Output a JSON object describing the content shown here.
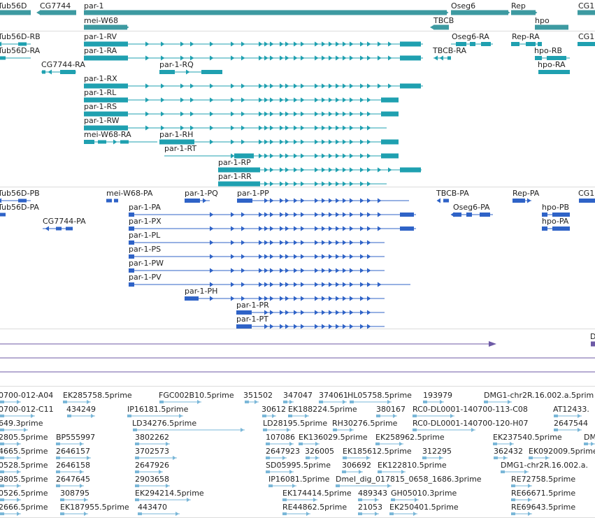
{
  "colors": {
    "gene": "#3d9aa1",
    "transcript": "#1fa0b0",
    "protein": "#2f63c7",
    "est": "#7ab7d8",
    "purple": "#6d5aa6",
    "divider": "#dcdcdc"
  },
  "genes_track": {
    "features": [
      {
        "label": "Tub56D"
      },
      {
        "label": "CG7744"
      },
      {
        "label": "par-1"
      },
      {
        "label": "Oseg6"
      },
      {
        "label": "Rep"
      },
      {
        "label": "CG1"
      },
      {
        "label": "mei-W68"
      },
      {
        "label": "TBCB"
      },
      {
        "label": "hpo"
      }
    ]
  },
  "transcripts_track": {
    "features": [
      {
        "label": "Tub56D-RB"
      },
      {
        "label": "par-1-RV"
      },
      {
        "label": "Oseg6-RA"
      },
      {
        "label": "Rep-RA"
      },
      {
        "label": "CG1"
      },
      {
        "label": "Tub56D-RA"
      },
      {
        "label": "par-1-RA"
      },
      {
        "label": "TBCB-RA"
      },
      {
        "label": "hpo-RB"
      },
      {
        "label": "CG7744-RA"
      },
      {
        "label": "par-1-RQ"
      },
      {
        "label": "hpo-RA"
      },
      {
        "label": "par-1-RX"
      },
      {
        "label": "par-1-RL"
      },
      {
        "label": "par-1-RS"
      },
      {
        "label": "par-1-RW"
      },
      {
        "label": "mei-W68-RA"
      },
      {
        "label": "par-1-RH"
      },
      {
        "label": "par-1-RT"
      },
      {
        "label": "par-1-RP"
      },
      {
        "label": "par-1-RR"
      }
    ]
  },
  "proteins_track": {
    "features": [
      {
        "label": "Tub56D-PB"
      },
      {
        "label": "mei-W68-PA"
      },
      {
        "label": "par-1-PQ"
      },
      {
        "label": "par-1-PP"
      },
      {
        "label": "TBCB-PA"
      },
      {
        "label": "Rep-PA"
      },
      {
        "label": "CG1"
      },
      {
        "label": "Tub56D-PA"
      },
      {
        "label": "par-1-PA"
      },
      {
        "label": "Oseg6-PA"
      },
      {
        "label": "hpo-PB"
      },
      {
        "label": "CG7744-PA"
      },
      {
        "label": "par-1-PX"
      },
      {
        "label": "hpo-PA"
      },
      {
        "label": "par-1-PL"
      },
      {
        "label": "par-1-PS"
      },
      {
        "label": "par-1-PW"
      },
      {
        "label": "par-1-PV"
      },
      {
        "label": "par-1-PH"
      },
      {
        "label": "par-1-PR"
      },
      {
        "label": "par-1-PT"
      }
    ]
  },
  "misc_track": {
    "features": [
      {
        "label": "D"
      }
    ]
  },
  "est_track": {
    "features": [
      {
        "label": "0700-012-A04"
      },
      {
        "label": "EK285758.5prime"
      },
      {
        "label": "FGC002B10.5prime"
      },
      {
        "label": "351502"
      },
      {
        "label": "347047"
      },
      {
        "label": "374061"
      },
      {
        "label": "HL05758.5prime"
      },
      {
        "label": "193979"
      },
      {
        "label": "DMG1-chr2R.16.002.a.5prim"
      },
      {
        "label": "0700-012-C11"
      },
      {
        "label": "434249"
      },
      {
        "label": "IP16181.5prime"
      },
      {
        "label": "30612"
      },
      {
        "label": "EK188224.5prime"
      },
      {
        "label": "380167"
      },
      {
        "label": "RC0-DL0001-140700-113-C08"
      },
      {
        "label": "AT12433."
      },
      {
        "label": "649.3prime"
      },
      {
        "label": "LD34276.5prime"
      },
      {
        "label": "LD28195.5prime"
      },
      {
        "label": "RH30276.5prime"
      },
      {
        "label": "RC0-DL0001-140700-120-H07"
      },
      {
        "label": "2647544"
      },
      {
        "label": "2805.5prime"
      },
      {
        "label": "BP555997"
      },
      {
        "label": "3802262"
      },
      {
        "label": "107086"
      },
      {
        "label": "EK136029.5prime"
      },
      {
        "label": "EK258962.5prime"
      },
      {
        "label": "EK237540.5prime"
      },
      {
        "label": "DM"
      },
      {
        "label": "4665.5prime"
      },
      {
        "label": "2646157"
      },
      {
        "label": "3702573"
      },
      {
        "label": "2647923"
      },
      {
        "label": "326005"
      },
      {
        "label": "EK185612.5prime"
      },
      {
        "label": "312295"
      },
      {
        "label": "362432"
      },
      {
        "label": "EK092009.5prime"
      },
      {
        "label": "0528.5prime"
      },
      {
        "label": "2646158"
      },
      {
        "label": "2647926"
      },
      {
        "label": "SD05995.5prime"
      },
      {
        "label": "306692"
      },
      {
        "label": "EK122810.5prime"
      },
      {
        "label": "DMG1-chr2R.16.002.a."
      },
      {
        "label": "9805.5prime"
      },
      {
        "label": "2647645"
      },
      {
        "label": "2903658"
      },
      {
        "label": "IP16081.5prime"
      },
      {
        "label": "Dmel_dig_017815_0658_1686.3prime"
      },
      {
        "label": "RE72758.5prime"
      },
      {
        "label": "0526.5prime"
      },
      {
        "label": "308795"
      },
      {
        "label": "EK294214.5prime"
      },
      {
        "label": "EK174414.5prime"
      },
      {
        "label": "489343"
      },
      {
        "label": "GH05010.3prime"
      },
      {
        "label": "RE66671.5prime"
      },
      {
        "label": "2666.5prime"
      },
      {
        "label": "EK187955.5prime"
      },
      {
        "label": "443470"
      },
      {
        "label": "RE44862.5prime"
      },
      {
        "label": "21053"
      },
      {
        "label": "EK250401.5prime"
      },
      {
        "label": "RE69643.5prime"
      }
    ]
  }
}
